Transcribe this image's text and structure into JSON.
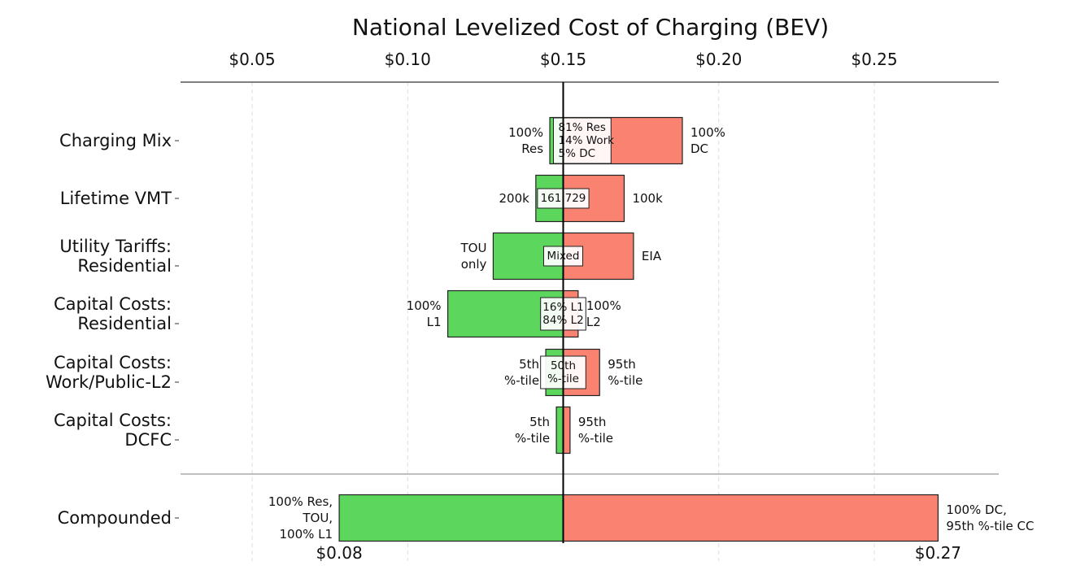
{
  "chart_data": {
    "type": "bar",
    "orientation": "horizontal",
    "subtype": "tornado",
    "title": "National Levelized Cost of Charging (BEV)",
    "baseline": 0.15,
    "xlim": [
      0.027,
      0.29
    ],
    "x_ticks": [
      {
        "value": 0.05,
        "label": "$0.05"
      },
      {
        "value": 0.1,
        "label": "$0.10"
      },
      {
        "value": 0.15,
        "label": "$0.15"
      },
      {
        "value": 0.2,
        "label": "$0.20"
      },
      {
        "value": 0.25,
        "label": "$0.25"
      }
    ],
    "grid": true,
    "colors": {
      "low": "#5cd65c",
      "high": "#fa8270",
      "baseline": "#000000",
      "grid": "#dddddd",
      "axis": "#555555"
    },
    "categories": [
      {
        "label": [
          "Charging Mix"
        ],
        "low": 0.1457,
        "high": 0.1883,
        "low_label": [
          "100%",
          "Res"
        ],
        "high_label": [
          "100%",
          "DC"
        ],
        "base_label": [
          "81% Res",
          "14% Work",
          "5% DC"
        ]
      },
      {
        "label": [
          "Lifetime VMT"
        ],
        "low": 0.1412,
        "high": 0.1696,
        "low_label": [
          "200k"
        ],
        "high_label": [
          "100k"
        ],
        "base_label": [
          "161,729"
        ]
      },
      {
        "label": [
          "Utility Tariffs:",
          "Residential"
        ],
        "low": 0.1275,
        "high": 0.1726,
        "low_label": [
          "TOU",
          "only"
        ],
        "high_label": [
          "EIA"
        ],
        "base_label": [
          "Mixed"
        ]
      },
      {
        "label": [
          "Capital Costs:",
          "Residential"
        ],
        "low": 0.1129,
        "high": 0.1548,
        "low_label": [
          "100%",
          "L1"
        ],
        "high_label": [
          "100%",
          "L2"
        ],
        "base_label": [
          "16% L1",
          "84% L2"
        ]
      },
      {
        "label": [
          "Capital Costs:",
          "Work/Public-L2"
        ],
        "low": 0.1444,
        "high": 0.1617,
        "low_label": [
          "5th",
          "%-tile"
        ],
        "high_label": [
          "95th",
          "%-tile"
        ],
        "base_label": [
          "50th",
          "%-tile"
        ]
      },
      {
        "label": [
          "Capital Costs:",
          "DCFC"
        ],
        "low": 0.1478,
        "high": 0.1522,
        "low_label": [
          "5th",
          "%-tile"
        ],
        "high_label": [
          "95th",
          "%-tile"
        ],
        "base_label": []
      }
    ],
    "compounded": {
      "label": [
        "Compounded"
      ],
      "low": 0.078,
      "high": 0.2705,
      "low_label": [
        "100% Res,",
        "TOU,",
        "100% L1"
      ],
      "high_label": [
        "100% DC,",
        "95th %-tile CC"
      ],
      "low_value_label": "$0.08",
      "high_value_label": "$0.27"
    }
  }
}
